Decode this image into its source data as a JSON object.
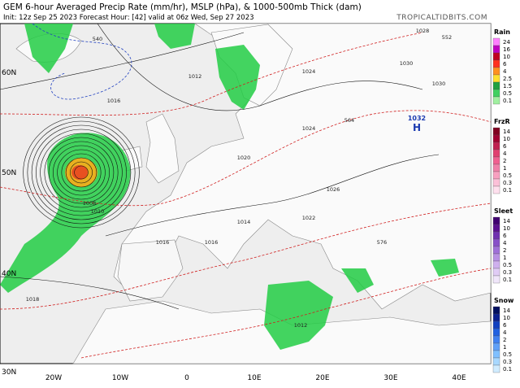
{
  "header": {
    "title": "GEM 6-hour Averaged Precip Rate (mm/hr), MSLP (hPa), & 1000-500mb Thick (dam)",
    "subtitle": "Init: 12z Sep 25 2023   Forecast Hour: [42]   valid at 06z Wed, Sep 27 2023",
    "source": "TROPICALTIDBITS.COM"
  },
  "legends": [
    {
      "name": "Rain",
      "ticks": [
        "24",
        "16",
        "10",
        "6",
        "4",
        "2.5",
        "1.5",
        "0.5",
        "0.1"
      ]
    },
    {
      "name": "FrzR",
      "ticks": [
        "14",
        "10",
        "6",
        "4",
        "2",
        "1",
        "0.5",
        "0.3",
        "0.1"
      ]
    },
    {
      "name": "Sleet",
      "ticks": [
        "14",
        "10",
        "6",
        "4",
        "2",
        "1",
        "0.5",
        "0.3",
        "0.1"
      ]
    },
    {
      "name": "Snow",
      "ticks": [
        "14",
        "10",
        "6",
        "4",
        "2",
        "1",
        "0.5",
        "0.3",
        "0.1"
      ]
    }
  ],
  "lat_labels": [
    "60N",
    "50N",
    "40N",
    "30N"
  ],
  "lon_labels": [
    "20W",
    "10W",
    "0",
    "10E",
    "20E",
    "30E",
    "40E"
  ],
  "high": {
    "value": "1032",
    "letter": "H"
  },
  "isobar_labels": [
    "1012",
    "1016",
    "1020",
    "1024",
    "1028",
    "1030",
    "1026",
    "1014",
    "1018",
    "1016",
    "1010",
    "1022",
    "1008",
    "540",
    "552",
    "564",
    "576",
    "1030",
    "1024",
    "1016",
    "1012"
  ]
}
